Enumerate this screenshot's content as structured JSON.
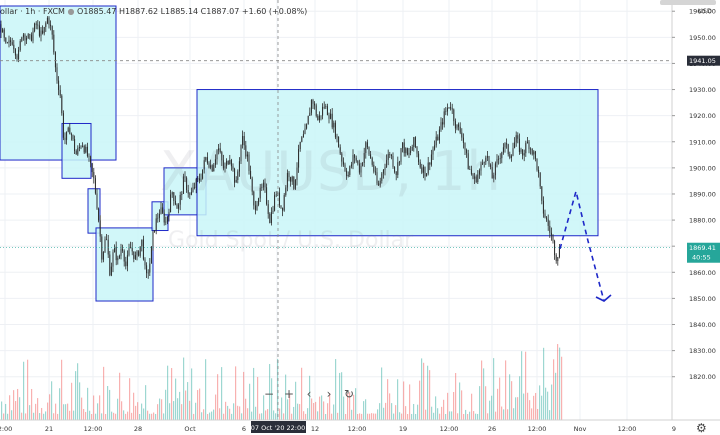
{
  "header": {
    "title_fragment": "ollar · 1h · FXCM",
    "ohlc_text": "O1885.47 H1887.62 L1885.14 C1887.07 +1.60 (+0.08%)"
  },
  "watermark": {
    "symbol": "XAUUSD, 1h",
    "description": "Gold Spot / U.S. Dollar"
  },
  "price_axis": {
    "currency": "USD",
    "current_price_label": "1869.41",
    "countdown": "40:55",
    "crosshair_price_label": "1941.05"
  },
  "crosshair_time_label": "07 Oct '20  22:00",
  "toolbar": [
    "−",
    "+",
    "‹",
    "›",
    "↻"
  ],
  "colors": {
    "box_fill": "#c9f6f8",
    "box_stroke": "#1e28c8",
    "bull": "#26a69a",
    "bear": "#ef5350",
    "candle": "#2a2a2a",
    "projection": "#1e28c8"
  },
  "chart_data": {
    "type": "candlestick",
    "instrument": "XAUUSD",
    "timeframe": "1h",
    "ylim": [
      1813,
      1962
    ],
    "y_ticks": [
      1820,
      1830,
      1840,
      1850,
      1860,
      1870,
      1880,
      1890,
      1900,
      1910,
      1920,
      1930,
      1940,
      1950,
      1960
    ],
    "x_ticks": [
      "2:00",
      "21",
      "12:00",
      "28",
      "Oct",
      "6",
      "12:00",
      "12",
      "12:00",
      "19",
      "12:00",
      "26",
      "12:00",
      "Nov",
      "12:00",
      "9"
    ],
    "close_path": [
      [
        0,
        1955
      ],
      [
        6,
        1946
      ],
      [
        12,
        1949
      ],
      [
        18,
        1942
      ],
      [
        22,
        1952
      ],
      [
        30,
        1949
      ],
      [
        36,
        1955
      ],
      [
        42,
        1950
      ],
      [
        48,
        1958
      ],
      [
        52,
        1951
      ],
      [
        56,
        1936
      ],
      [
        60,
        1929
      ],
      [
        64,
        1910
      ],
      [
        70,
        1915
      ],
      [
        76,
        1905
      ],
      [
        82,
        1910
      ],
      [
        88,
        1904
      ],
      [
        94,
        1895
      ],
      [
        98,
        1883
      ],
      [
        102,
        1866
      ],
      [
        106,
        1874
      ],
      [
        110,
        1860
      ],
      [
        114,
        1869
      ],
      [
        118,
        1864
      ],
      [
        122,
        1871
      ],
      [
        126,
        1862
      ],
      [
        130,
        1870
      ],
      [
        136,
        1865
      ],
      [
        142,
        1872
      ],
      [
        146,
        1857
      ],
      [
        150,
        1864
      ],
      [
        154,
        1877
      ],
      [
        160,
        1884
      ],
      [
        166,
        1879
      ],
      [
        172,
        1891
      ],
      [
        178,
        1884
      ],
      [
        184,
        1896
      ],
      [
        190,
        1889
      ],
      [
        196,
        1894
      ],
      [
        200,
        1896
      ],
      [
        206,
        1904
      ],
      [
        212,
        1900
      ],
      [
        218,
        1908
      ],
      [
        224,
        1899
      ],
      [
        230,
        1905
      ],
      [
        236,
        1893
      ],
      [
        242,
        1912
      ],
      [
        248,
        1903
      ],
      [
        254,
        1884
      ],
      [
        258,
        1889
      ],
      [
        264,
        1893
      ],
      [
        270,
        1880
      ],
      [
        276,
        1891
      ],
      [
        282,
        1884
      ],
      [
        288,
        1899
      ],
      [
        294,
        1893
      ],
      [
        300,
        1909
      ],
      [
        306,
        1914
      ],
      [
        312,
        1927
      ],
      [
        318,
        1918
      ],
      [
        324,
        1924
      ],
      [
        330,
        1920
      ],
      [
        336,
        1913
      ],
      [
        342,
        1903
      ],
      [
        348,
        1897
      ],
      [
        354,
        1905
      ],
      [
        360,
        1899
      ],
      [
        366,
        1909
      ],
      [
        372,
        1902
      ],
      [
        378,
        1892
      ],
      [
        384,
        1901
      ],
      [
        390,
        1906
      ],
      [
        396,
        1898
      ],
      [
        402,
        1909
      ],
      [
        408,
        1904
      ],
      [
        414,
        1910
      ],
      [
        420,
        1901
      ],
      [
        426,
        1898
      ],
      [
        432,
        1906
      ],
      [
        438,
        1912
      ],
      [
        444,
        1920
      ],
      [
        450,
        1925
      ],
      [
        456,
        1916
      ],
      [
        462,
        1913
      ],
      [
        468,
        1901
      ],
      [
        474,
        1895
      ],
      [
        480,
        1899
      ],
      [
        486,
        1906
      ],
      [
        492,
        1896
      ],
      [
        498,
        1903
      ],
      [
        504,
        1909
      ],
      [
        510,
        1905
      ],
      [
        516,
        1911
      ],
      [
        522,
        1905
      ],
      [
        528,
        1910
      ],
      [
        534,
        1905
      ],
      [
        538,
        1899
      ],
      [
        542,
        1885
      ],
      [
        548,
        1878
      ],
      [
        552,
        1873
      ],
      [
        556,
        1866
      ],
      [
        560,
        1869
      ]
    ],
    "projection_path": [
      [
        560,
        1869
      ],
      [
        576,
        1891
      ],
      [
        588,
        1872
      ],
      [
        604,
        1849
      ]
    ],
    "boxes": [
      {
        "x1": 0,
        "x2": 116,
        "y_top": 1962,
        "y_bottom": 1903
      },
      {
        "x1": 62,
        "x2": 91,
        "y_top": 1917,
        "y_bottom": 1896
      },
      {
        "x1": 88,
        "x2": 100,
        "y_top": 1892,
        "y_bottom": 1875
      },
      {
        "x1": 96,
        "x2": 153,
        "y_top": 1877,
        "y_bottom": 1849
      },
      {
        "x1": 152,
        "x2": 168,
        "y_top": 1887,
        "y_bottom": 1876
      },
      {
        "x1": 164,
        "x2": 206,
        "y_top": 1900,
        "y_bottom": 1882
      },
      {
        "x1": 197,
        "x2": 598,
        "y_top": 1930,
        "y_bottom": 1874
      }
    ],
    "crosshair": {
      "x": 278,
      "price": 1941.05
    }
  }
}
